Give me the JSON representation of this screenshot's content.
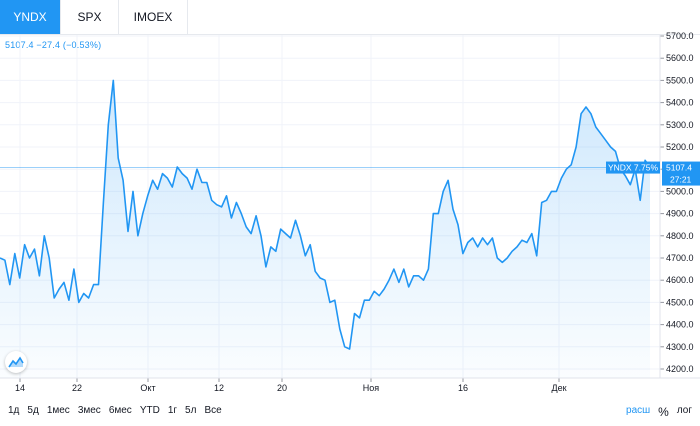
{
  "tabs": [
    "YNDX",
    "SPX",
    "IMOEX"
  ],
  "legend": "5107.4  −27.4 (−0.53%)",
  "price_label": {
    "name": "YNDX 7.75%",
    "value": "5107.4",
    "countdown": "27:21"
  },
  "ranges": [
    "1д",
    "5д",
    "1мес",
    "3мес",
    "6мес",
    "YTD",
    "1г",
    "5л",
    "Все"
  ],
  "scale_options": {
    "pct": "%",
    "linear": "расш",
    "log": "лог"
  },
  "colors": {
    "accent": "#2196f3",
    "area_top": "rgba(33,150,243,0.22)",
    "area_bottom": "rgba(33,150,243,0.02)"
  },
  "chart_data": {
    "type": "area",
    "y_ticks": [
      "4200.0",
      "4300.0",
      "4400.0",
      "4500.0",
      "4600.0",
      "4700.0",
      "4800.0",
      "4900.0",
      "5000.0",
      "5100.0",
      "5200.0",
      "5300.0",
      "5400.0",
      "5500.0",
      "5600.0",
      "5700.0"
    ],
    "x_ticks": [
      "14",
      "22",
      "Окт",
      "12",
      "20",
      "Ноя",
      "16",
      "Дек"
    ],
    "ylim": [
      4200,
      5700
    ],
    "grid": true,
    "series": [
      {
        "values": [
          4700,
          4690,
          4580,
          4720,
          4610,
          4760,
          4700,
          4740,
          4620,
          4800,
          4700,
          4520,
          4560,
          4590,
          4510,
          4650,
          4500,
          4540,
          4520,
          4580,
          4580,
          4950,
          5300,
          5500,
          5150,
          5050,
          4820,
          5000,
          4800,
          4900,
          4980,
          5050,
          5010,
          5080,
          5060,
          5020,
          5110,
          5080,
          5060,
          5010,
          5100,
          5040,
          5040,
          4960,
          4940,
          4930,
          4980,
          4880,
          4950,
          4900,
          4840,
          4810,
          4890,
          4800,
          4660,
          4750,
          4730,
          4830,
          4810,
          4790,
          4870,
          4800,
          4710,
          4760,
          4640,
          4610,
          4600,
          4500,
          4510,
          4380,
          4300,
          4290,
          4450,
          4430,
          4510,
          4510,
          4550,
          4530,
          4560,
          4600,
          4650,
          4590,
          4650,
          4570,
          4620,
          4620,
          4600,
          4650,
          4900,
          4900,
          5000,
          5050,
          4920,
          4850,
          4720,
          4770,
          4790,
          4750,
          4790,
          4760,
          4790,
          4700,
          4680,
          4700,
          4730,
          4750,
          4780,
          4770,
          4810,
          4710,
          4950,
          4960,
          5000,
          5000,
          5060,
          5100,
          5120,
          5200,
          5350,
          5380,
          5350,
          5290,
          5260,
          5230,
          5200,
          5180,
          5100,
          5070,
          5030,
          5100,
          4960,
          5140,
          5110
        ]
      }
    ]
  }
}
